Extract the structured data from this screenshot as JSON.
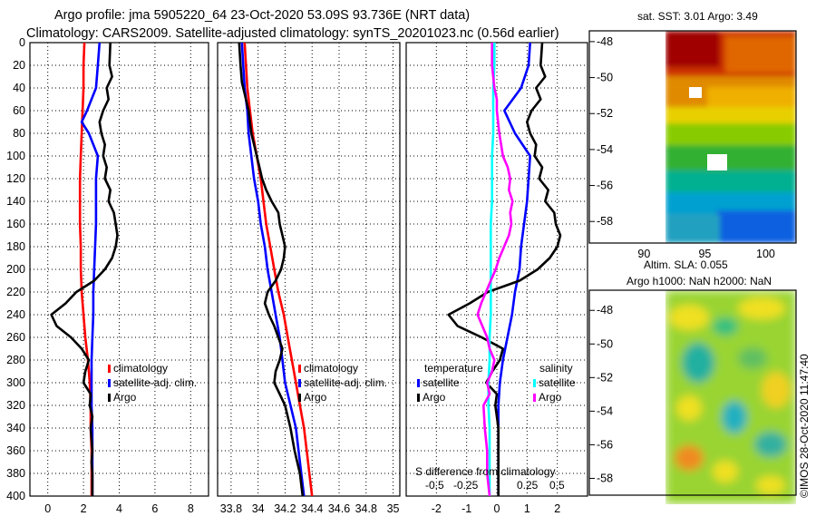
{
  "title_line1": "Argo profile: jma 5905220_64 23-Oct-2020 53.09S 93.736E (NRT data)",
  "title_line2": "Climatology: CARS2009. Satellite-adjusted climatology: synTS_20201023.nc (0.56d earlier)",
  "sst_title": "sat. SST: 3.01 Argo: 3.49",
  "sla_title_1": "Altim. SLA: 0.055",
  "sla_title_2": "Argo h1000: NaN h2000: NaN",
  "watermark": "©IMOS 28-Oct-2020 11:47:40",
  "colors": {
    "climatology": "#ff0000",
    "satellite": "#0000ff",
    "argo": "#000000",
    "sal_satellite": "#00ffff",
    "sal_argo": "#ff00ff"
  },
  "chart_data": [
    {
      "type": "line",
      "title": "Temperature profile",
      "xlim": [
        -1,
        9
      ],
      "ylim": [
        400,
        0
      ],
      "xticks": [
        "0",
        "2",
        "4",
        "6",
        "8"
      ],
      "yticks": [
        "0",
        "20",
        "40",
        "60",
        "80",
        "100",
        "120",
        "140",
        "160",
        "180",
        "200",
        "220",
        "240",
        "260",
        "280",
        "300",
        "320",
        "340",
        "360",
        "380",
        "400"
      ],
      "legend": [
        "climatology",
        "satellite-adj. clim.",
        "Argo"
      ],
      "series": [
        {
          "name": "climatology",
          "color": "#ff0000",
          "depth": [
            0,
            20,
            40,
            60,
            80,
            100,
            120,
            140,
            160,
            180,
            200,
            220,
            240,
            260,
            280,
            300,
            320,
            340,
            360,
            380,
            400
          ],
          "values": [
            2.05,
            2.0,
            2.0,
            1.95,
            1.9,
            1.85,
            1.8,
            1.8,
            1.8,
            1.85,
            1.85,
            1.9,
            2.0,
            2.1,
            2.25,
            2.35,
            2.4,
            2.4,
            2.45,
            2.45,
            2.45
          ]
        },
        {
          "name": "satellite-adj. clim.",
          "color": "#0000ff",
          "depth": [
            0,
            20,
            40,
            60,
            70,
            80,
            100,
            120,
            140,
            160,
            180,
            200,
            220,
            240,
            260,
            280,
            300,
            320,
            340,
            360,
            380,
            400
          ],
          "values": [
            2.9,
            2.8,
            2.7,
            2.2,
            1.9,
            2.3,
            2.8,
            2.7,
            2.7,
            2.7,
            2.65,
            2.6,
            2.55,
            2.55,
            2.5,
            2.45,
            2.45,
            2.45,
            2.5,
            2.5,
            2.5,
            2.5
          ]
        },
        {
          "name": "Argo",
          "color": "#000000",
          "depth": [
            0,
            20,
            30,
            40,
            50,
            60,
            70,
            80,
            90,
            100,
            110,
            120,
            130,
            140,
            150,
            160,
            170,
            180,
            190,
            200,
            210,
            220,
            230,
            240,
            250,
            260,
            270,
            280,
            290,
            300,
            310,
            320,
            330,
            340,
            350,
            360,
            370,
            380,
            390,
            400
          ],
          "values": [
            3.5,
            3.45,
            3.6,
            3.3,
            3.4,
            3.1,
            2.9,
            3.0,
            3.2,
            3.1,
            3.3,
            3.2,
            3.5,
            3.4,
            3.7,
            3.8,
            3.9,
            3.8,
            3.6,
            3.2,
            2.6,
            1.6,
            1.0,
            0.2,
            0.5,
            1.3,
            1.9,
            2.3,
            2.1,
            2.0,
            2.4,
            2.35,
            2.5,
            2.4,
            2.45,
            2.5,
            2.45,
            2.5,
            2.5,
            2.5
          ]
        }
      ]
    },
    {
      "type": "line",
      "title": "Salinity profile",
      "xlim": [
        33.7,
        35.05
      ],
      "ylim": [
        400,
        0
      ],
      "xticks": [
        "33.8",
        "34",
        "34.2",
        "34.4",
        "34.6",
        "34.8",
        "35"
      ],
      "legend": [
        "climatology",
        "satellite-adj. clim.",
        "Argo"
      ],
      "series": [
        {
          "name": "climatology",
          "color": "#ff0000",
          "depth": [
            0,
            20,
            40,
            60,
            80,
            100,
            120,
            140,
            160,
            180,
            200,
            220,
            240,
            260,
            280,
            300,
            320,
            340,
            360,
            380,
            400
          ],
          "values": [
            33.9,
            33.91,
            33.92,
            33.94,
            33.96,
            33.99,
            34.02,
            34.04,
            34.06,
            34.09,
            34.12,
            34.15,
            34.19,
            34.22,
            34.25,
            34.28,
            34.31,
            34.34,
            34.36,
            34.38,
            34.4
          ]
        },
        {
          "name": "satellite-adj. clim.",
          "color": "#0000ff",
          "depth": [
            0,
            20,
            40,
            60,
            80,
            100,
            120,
            140,
            160,
            180,
            200,
            220,
            240,
            260,
            280,
            300,
            320,
            340,
            360,
            380,
            400
          ],
          "values": [
            33.88,
            33.89,
            33.9,
            33.92,
            33.93,
            33.95,
            33.97,
            34.0,
            34.02,
            34.05,
            34.07,
            34.1,
            34.13,
            34.16,
            34.18,
            34.2,
            34.24,
            34.28,
            34.3,
            34.32,
            34.34
          ]
        },
        {
          "name": "Argo",
          "color": "#000000",
          "depth": [
            0,
            20,
            35,
            45,
            60,
            80,
            100,
            110,
            120,
            130,
            140,
            150,
            160,
            170,
            180,
            190,
            200,
            210,
            220,
            230,
            240,
            250,
            260,
            270,
            280,
            290,
            300,
            310,
            320,
            340,
            360,
            380,
            400
          ],
          "values": [
            33.86,
            33.87,
            33.88,
            33.9,
            33.93,
            33.95,
            33.99,
            34.01,
            34.03,
            34.06,
            34.1,
            34.15,
            34.16,
            34.18,
            34.2,
            34.19,
            34.17,
            34.13,
            34.07,
            34.05,
            34.08,
            34.12,
            34.15,
            34.18,
            34.16,
            34.13,
            34.12,
            34.16,
            34.2,
            34.24,
            34.27,
            34.31,
            34.33
          ]
        }
      ]
    },
    {
      "type": "line",
      "title": "Difference from climatology",
      "xlim": [
        -3,
        3
      ],
      "ylim": [
        400,
        0
      ],
      "xticks": [
        "-2",
        "-1",
        "0",
        "1",
        "2"
      ],
      "secondary_axis_label": "S difference from climatology",
      "secondary_ticks": [
        "-0.5",
        "-0.25",
        "0.25",
        "0.5"
      ],
      "legend_temperature": [
        "temperature",
        "satellite",
        "Argo"
      ],
      "legend_salinity": [
        "salinity",
        "satellite",
        "Argo"
      ],
      "series": [
        {
          "name": "temperature satellite",
          "color": "#0000ff",
          "depth": [
            0,
            20,
            40,
            60,
            80,
            100,
            120,
            140,
            160,
            180,
            200,
            220,
            240,
            260,
            280,
            300,
            320,
            340,
            360,
            380,
            400
          ],
          "values": [
            1.1,
            1.05,
            0.8,
            0.25,
            0.6,
            1.1,
            1.05,
            1.0,
            0.9,
            0.8,
            0.75,
            0.6,
            0.5,
            0.35,
            0.2,
            0.1,
            0.05,
            0.05,
            0.05,
            0.05,
            0.05
          ]
        },
        {
          "name": "temperature Argo",
          "color": "#000000",
          "depth": [
            0,
            20,
            30,
            40,
            50,
            60,
            70,
            80,
            90,
            100,
            110,
            120,
            130,
            140,
            150,
            160,
            170,
            180,
            190,
            200,
            210,
            220,
            230,
            240,
            250,
            260,
            270,
            280,
            290,
            300,
            310,
            320,
            340,
            360,
            380,
            400
          ],
          "values": [
            1.5,
            1.45,
            1.6,
            1.3,
            1.45,
            1.15,
            1.0,
            1.1,
            1.3,
            1.25,
            1.5,
            1.4,
            1.7,
            1.6,
            1.9,
            1.95,
            2.1,
            2.0,
            1.75,
            1.35,
            0.75,
            -0.3,
            -0.9,
            -1.6,
            -1.3,
            -0.5,
            0.2,
            0.1,
            -0.15,
            -0.35,
            0.0,
            -0.05,
            0.05,
            0.05,
            0.05,
            0.05
          ]
        },
        {
          "name": "salinity satellite",
          "color": "#00ffff",
          "depth": [
            0,
            20,
            40,
            60,
            80,
            100,
            120,
            140,
            160,
            180,
            200,
            220,
            240,
            260,
            280,
            300,
            320,
            340,
            360,
            380,
            400
          ],
          "values": [
            -0.02,
            -0.02,
            -0.03,
            -0.03,
            -0.03,
            -0.04,
            -0.04,
            -0.04,
            -0.05,
            -0.05,
            -0.05,
            -0.05,
            -0.05,
            -0.06,
            -0.06,
            -0.07,
            -0.07,
            -0.06,
            -0.06,
            -0.06,
            -0.06
          ]
        },
        {
          "name": "salinity Argo",
          "color": "#ff00ff",
          "depth": [
            0,
            20,
            40,
            50,
            60,
            80,
            100,
            110,
            120,
            130,
            140,
            150,
            160,
            170,
            180,
            190,
            200,
            210,
            220,
            230,
            240,
            250,
            260,
            270,
            280,
            290,
            300,
            310,
            320,
            340,
            360,
            380,
            400
          ],
          "values": [
            -0.04,
            -0.04,
            -0.02,
            0.0,
            0.0,
            0.02,
            0.05,
            0.09,
            0.11,
            0.1,
            0.13,
            0.11,
            0.12,
            0.1,
            0.06,
            0.02,
            -0.01,
            -0.05,
            -0.09,
            -0.13,
            -0.16,
            -0.12,
            -0.08,
            -0.06,
            -0.02,
            -0.04,
            -0.08,
            -0.06,
            -0.11,
            -0.1,
            -0.08,
            -0.08,
            -0.06
          ]
        }
      ]
    },
    {
      "type": "heatmap",
      "title": "sat. SST: 3.01 Argo: 3.49",
      "xticks": [
        "90",
        "95",
        "100"
      ],
      "yticks": [
        "-48",
        "-50",
        "-52",
        "-54",
        "-56",
        "-58"
      ],
      "xlim": [
        85.5,
        102.5
      ],
      "ylim": [
        -59.2,
        -47.4
      ]
    },
    {
      "type": "heatmap",
      "title": "Altim. SLA: 0.055",
      "xlim": [
        85.5,
        102.5
      ],
      "ylim": [
        -59,
        -46.8
      ],
      "yticks": [
        "-48",
        "-50",
        "-52",
        "-54",
        "-56",
        "-58"
      ]
    }
  ]
}
